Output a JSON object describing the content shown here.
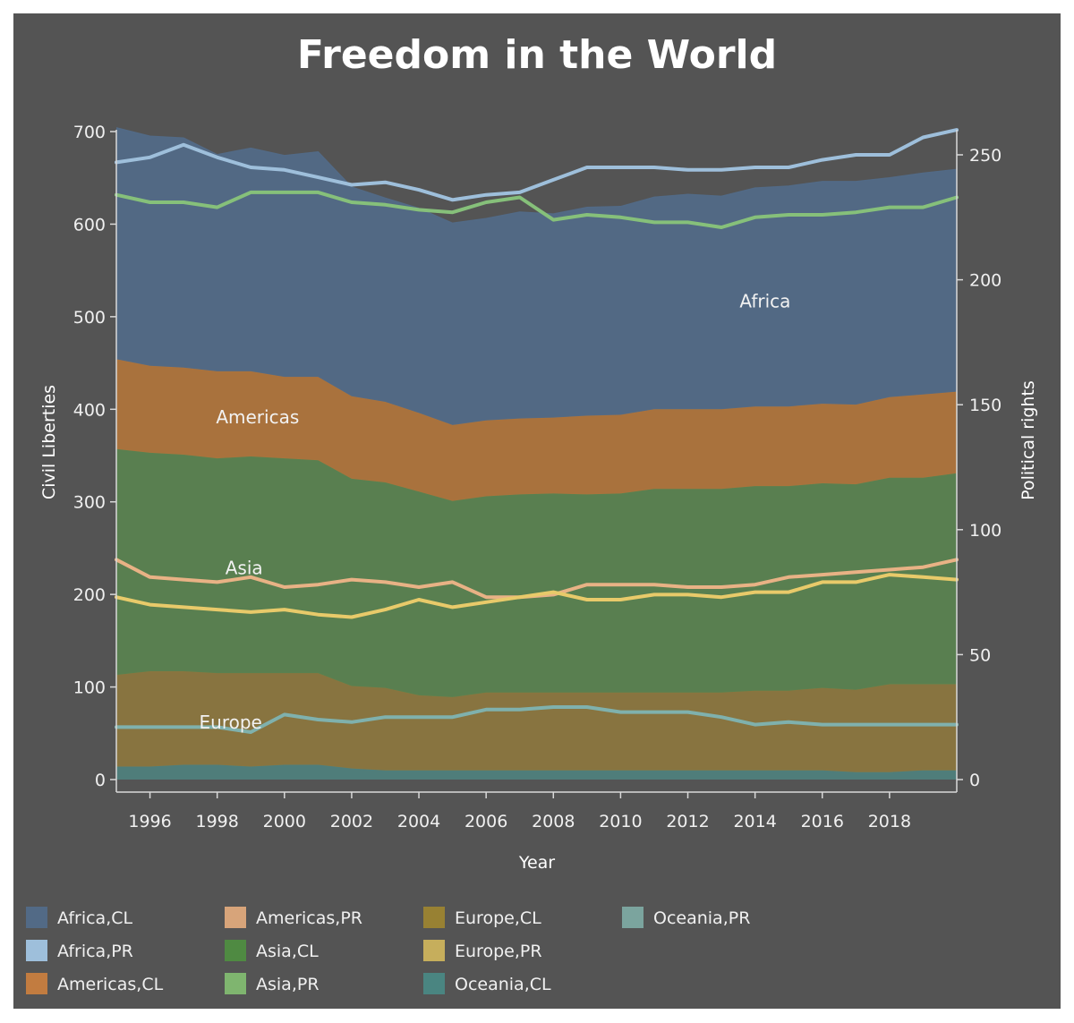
{
  "chart_data": {
    "type": "area",
    "title": "Freedom in the World",
    "xlabel": "Year",
    "ylabel_left": "Civil Liberties",
    "ylabel_right": "Political rights",
    "x": [
      1995,
      1996,
      1997,
      1998,
      1999,
      2000,
      2001,
      2002,
      2003,
      2004,
      2005,
      2006,
      2007,
      2008,
      2009,
      2010,
      2011,
      2012,
      2013,
      2014,
      2015,
      2016,
      2017,
      2018,
      2019,
      2020
    ],
    "x_ticks": [
      1996,
      1998,
      2000,
      2002,
      2004,
      2006,
      2008,
      2010,
      2012,
      2014,
      2016,
      2018
    ],
    "ylim_left": [
      0,
      700
    ],
    "ylim_right": [
      0,
      250
    ],
    "yticks_left": [
      0,
      100,
      200,
      300,
      400,
      500,
      600,
      700
    ],
    "yticks_right": [
      0,
      50,
      100,
      150,
      200,
      250
    ],
    "stacked_series": [
      {
        "name": "Oceania,CL",
        "color": "#4f7f7c",
        "values": [
          14,
          14,
          16,
          16,
          14,
          16,
          16,
          12,
          10,
          10,
          10,
          10,
          10,
          10,
          10,
          10,
          10,
          10,
          10,
          10,
          10,
          10,
          8,
          8,
          10,
          10
        ]
      },
      {
        "name": "Europe,CL",
        "color": "#8a763f",
        "values": [
          99,
          103,
          101,
          99,
          101,
          99,
          99,
          89,
          89,
          81,
          79,
          84,
          84,
          84,
          84,
          84,
          84,
          84,
          84,
          86,
          86,
          89,
          89,
          95,
          93,
          93
        ]
      },
      {
        "name": "Asia,CL",
        "color": "#5a8150",
        "values": [
          244,
          236,
          234,
          232,
          234,
          232,
          230,
          224,
          222,
          220,
          212,
          212,
          214,
          215,
          214,
          215,
          220,
          220,
          220,
          221,
          221,
          221,
          222,
          223,
          223,
          228
        ]
      },
      {
        "name": "Americas,CL",
        "color": "#ad743c",
        "values": [
          97,
          94,
          94,
          94,
          92,
          88,
          90,
          89,
          87,
          85,
          82,
          82,
          82,
          82,
          85,
          85,
          86,
          86,
          86,
          86,
          86,
          86,
          86,
          87,
          90,
          88
        ]
      },
      {
        "name": "Africa,CL",
        "color": "#526a86",
        "values": [
          250,
          248,
          248,
          234,
          241,
          239,
          243,
          226,
          220,
          221,
          218,
          218,
          223,
          220,
          225,
          225,
          229,
          232,
          230,
          236,
          238,
          240,
          241,
          237,
          239,
          240
        ]
      }
    ],
    "line_series": [
      {
        "name": "Africa,PR",
        "color": "#9ebfdb",
        "values": [
          247,
          249,
          254,
          249,
          245,
          244,
          241,
          238,
          239,
          236,
          232,
          234,
          235,
          240,
          245,
          245,
          245,
          244,
          244,
          245,
          245,
          248,
          250,
          250,
          257,
          260
        ]
      },
      {
        "name": "Asia,PR",
        "color": "#86c07a",
        "values": [
          234,
          231,
          231,
          229,
          235,
          235,
          235,
          231,
          230,
          228,
          227,
          231,
          233,
          224,
          226,
          225,
          223,
          223,
          221,
          225,
          226,
          226,
          227,
          229,
          229,
          233
        ]
      },
      {
        "name": "Americas,PR",
        "color": "#e8b285",
        "values": [
          88,
          81,
          80,
          79,
          81,
          77,
          78,
          80,
          79,
          77,
          79,
          73,
          73,
          74,
          78,
          78,
          78,
          77,
          77,
          78,
          81,
          82,
          83,
          84,
          85,
          88
        ]
      },
      {
        "name": "Europe,PR",
        "color": "#e8ca6a",
        "values": [
          73,
          70,
          69,
          68,
          67,
          68,
          66,
          65,
          68,
          72,
          69,
          71,
          73,
          75,
          72,
          72,
          74,
          74,
          73,
          75,
          75,
          79,
          79,
          82,
          81,
          80
        ]
      },
      {
        "name": "Oceania,PR",
        "color": "#7fb1ad",
        "values": [
          21,
          21,
          21,
          21,
          19,
          26,
          24,
          23,
          25,
          25,
          25,
          28,
          28,
          29,
          29,
          27,
          27,
          27,
          25,
          22,
          23,
          22,
          22,
          22,
          22,
          22
        ]
      }
    ],
    "region_labels": [
      "Africa",
      "Americas",
      "Asia",
      "Europe"
    ],
    "legend": [
      {
        "name": "Africa,CL",
        "color": "#526a86"
      },
      {
        "name": "Africa,PR",
        "color": "#9ebfdb"
      },
      {
        "name": "Americas,CL",
        "color": "#c27c40"
      },
      {
        "name": "Americas,PR",
        "color": "#d7a47a"
      },
      {
        "name": "Asia,CL",
        "color": "#4f8a42"
      },
      {
        "name": "Asia,PR",
        "color": "#7fb56f"
      },
      {
        "name": "Europe,CL",
        "color": "#988133"
      },
      {
        "name": "Europe,PR",
        "color": "#c6ae5c"
      },
      {
        "name": "Oceania,CL",
        "color": "#4a8581"
      },
      {
        "name": "Oceania,PR",
        "color": "#7ba49e"
      }
    ],
    "legend_placement": "bottom",
    "grid": false,
    "background": "#545454"
  }
}
